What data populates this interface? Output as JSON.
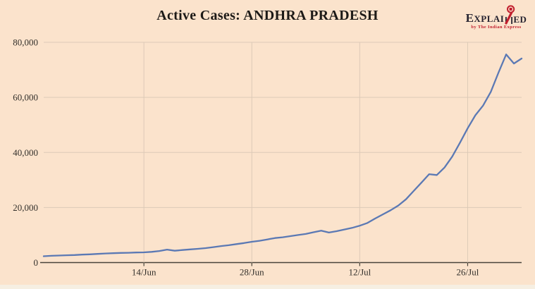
{
  "page": {
    "background": "#fbe3cc"
  },
  "header": {
    "title": "Active Cases: ANDHRA PRADESH"
  },
  "logo": {
    "wordmark_pre": "EXPLAI",
    "wordmark_post": "ED",
    "tagline": "by The Indian Express",
    "text_color": "#262330",
    "accent_color": "#c1202f"
  },
  "chart_data": {
    "type": "line",
    "title": "Active Cases: ANDHRA PRADESH",
    "series_name": "Active Cases",
    "x": [
      "1/Jun",
      "2/Jun",
      "3/Jun",
      "4/Jun",
      "5/Jun",
      "6/Jun",
      "7/Jun",
      "8/Jun",
      "9/Jun",
      "10/Jun",
      "11/Jun",
      "12/Jun",
      "13/Jun",
      "14/Jun",
      "15/Jun",
      "16/Jun",
      "17/Jun",
      "18/Jun",
      "19/Jun",
      "20/Jun",
      "21/Jun",
      "22/Jun",
      "23/Jun",
      "24/Jun",
      "25/Jun",
      "26/Jun",
      "27/Jun",
      "28/Jun",
      "29/Jun",
      "30/Jun",
      "1/Jul",
      "2/Jul",
      "3/Jul",
      "4/Jul",
      "5/Jul",
      "6/Jul",
      "7/Jul",
      "8/Jul",
      "9/Jul",
      "10/Jul",
      "11/Jul",
      "12/Jul",
      "13/Jul",
      "14/Jul",
      "15/Jul",
      "16/Jul",
      "17/Jul",
      "18/Jul",
      "19/Jul",
      "20/Jul",
      "21/Jul",
      "22/Jul",
      "23/Jul",
      "24/Jul",
      "25/Jul",
      "26/Jul",
      "27/Jul",
      "28/Jul",
      "29/Jul",
      "30/Jul",
      "31/Jul",
      "1/Aug",
      "2/Aug"
    ],
    "values": [
      2300,
      2450,
      2550,
      2650,
      2750,
      2900,
      3000,
      3150,
      3300,
      3400,
      3500,
      3550,
      3650,
      3700,
      3900,
      4200,
      4700,
      4300,
      4550,
      4800,
      5000,
      5250,
      5600,
      6000,
      6300,
      6700,
      7100,
      7550,
      7900,
      8400,
      8900,
      9200,
      9600,
      10000,
      10400,
      11000,
      11600,
      10900,
      11400,
      12000,
      12600,
      13400,
      14400,
      16000,
      17500,
      19000,
      20700,
      23000,
      26000,
      29000,
      32100,
      31800,
      34500,
      38500,
      43500,
      48800,
      53500,
      57000,
      62000,
      69000,
      75600,
      72300,
      74100
    ],
    "x_tick_labels": [
      "14/Jun",
      "28/Jun",
      "12/Jul",
      "26/Jul"
    ],
    "x_tick_indices": [
      13,
      27,
      41,
      55
    ],
    "y_ticks": [
      0,
      20000,
      40000,
      60000,
      80000
    ],
    "y_tick_labels": [
      "0",
      "20,000",
      "40,000",
      "60,000",
      "80,000"
    ],
    "ylim": [
      0,
      80000
    ],
    "grid": true,
    "legend": "none",
    "line_color": "#5b79b4",
    "grid_color": "#ddcab7",
    "axis_color": "#49443a",
    "label_color": "#33302b"
  }
}
